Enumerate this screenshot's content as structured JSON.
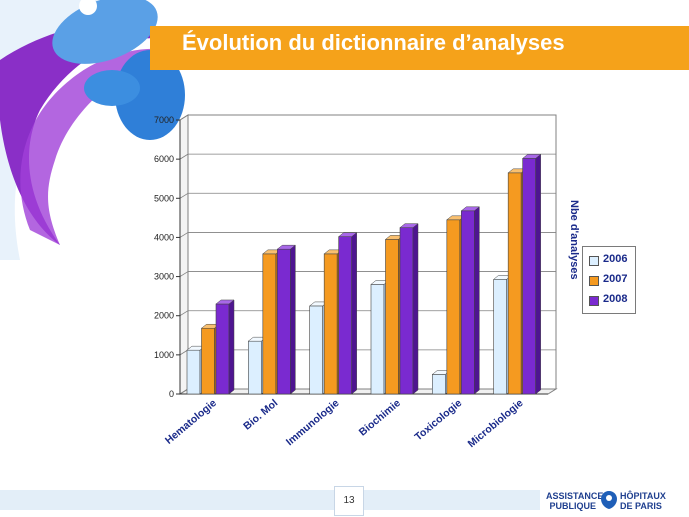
{
  "slide": {
    "title": "Évolution du dictionnaire d’analyses",
    "page_number": "13",
    "logo": {
      "line1": "ASSISTANCE",
      "line2": "PUBLIQUE",
      "line3": "HÔPITAUX",
      "line4": "DE PARIS"
    }
  },
  "colors": {
    "title_bar": "#f5a21a",
    "series_2006": "#dcefff",
    "series_2007": "#f59a20",
    "series_2008": "#7a2ad0"
  },
  "chart_data": {
    "type": "bar",
    "title": "",
    "xlabel": "",
    "ylabel": "Nbe d'analyses",
    "categories": [
      "Hematologie",
      "Bio. Mol",
      "Immunologie",
      "Biochimie",
      "Toxicologie",
      "Microbiologie"
    ],
    "series": [
      {
        "name": "2006",
        "values": [
          1120,
          1350,
          2250,
          2800,
          500,
          2930
        ]
      },
      {
        "name": "2007",
        "values": [
          1680,
          3580,
          3580,
          3950,
          4450,
          5650
        ]
      },
      {
        "name": "2008",
        "values": [
          2300,
          3700,
          4020,
          4250,
          4680,
          6020
        ]
      }
    ],
    "ylim": [
      0,
      7000
    ],
    "yticks": [
      0,
      1000,
      2000,
      3000,
      4000,
      5000,
      6000,
      7000
    ],
    "grid": true,
    "legend": "right"
  }
}
